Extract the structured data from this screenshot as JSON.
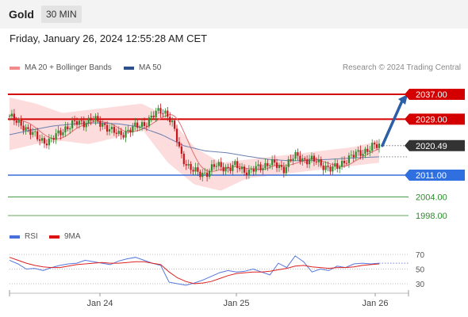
{
  "header": {
    "symbol": "Gold",
    "timeframe": "30 MIN"
  },
  "datetime": "Friday, January 26, 2024 12:55:28 AM CET",
  "credit": "Research © 2024 Trading Central",
  "legend": {
    "ma20_bollinger": "MA 20 + Bollinger Bands",
    "ma50": "MA 50",
    "rsi": "RSI",
    "rsi_ma": "9MA"
  },
  "colors": {
    "resistance": "#d40000",
    "support_primary": "#3a6fd8",
    "support_secondary": "#2e8b2e",
    "bull_candle": "#2e8b2e",
    "bear_candle": "#c8141a",
    "bollinger_fill": "#fbd6d6",
    "ma20": "#e07070",
    "ma50": "#6a7fb0",
    "rsi_line": "#5577dd",
    "rsi_ma_line": "#dd2222",
    "forecast_arrow": "#2d5fa8",
    "current_price_tag": "#333333"
  },
  "chart_data": {
    "type": "candlestick",
    "title": "Gold",
    "timeframe": "30 MIN",
    "x_tick_labels": [
      "Jan 24",
      "Jan 25",
      "Jan 26"
    ],
    "price_range": [
      1996,
      2040
    ],
    "current_price": "2020.49",
    "resistance_levels": [
      {
        "label": "2037.00",
        "value": 2037.0
      },
      {
        "label": "2029.00",
        "value": 2029.0
      }
    ],
    "support_levels": [
      {
        "label": "2011.00",
        "value": 2011.0,
        "style": "primary"
      },
      {
        "label": "2004.00",
        "value": 2004.0,
        "style": "secondary"
      },
      {
        "label": "1998.00",
        "value": 1998.0,
        "style": "secondary"
      }
    ],
    "forecast": {
      "from": 2020.5,
      "to": 2037.0,
      "direction": "up"
    },
    "price_path": [
      2030,
      2028,
      2027,
      2025,
      2023,
      2022,
      2022,
      2024,
      2026,
      2027,
      2028,
      2028,
      2029,
      2028,
      2027,
      2025,
      2024,
      2025,
      2026,
      2027,
      2028,
      2030,
      2032,
      2031,
      2026,
      2018,
      2014,
      2012,
      2011.5,
      2012,
      2014,
      2014,
      2013,
      2014,
      2013,
      2012,
      2013,
      2014,
      2015,
      2014,
      2013,
      2016,
      2017,
      2016,
      2016,
      2015,
      2014,
      2013,
      2013.5,
      2016,
      2017,
      2018,
      2019,
      2020,
      2020.49
    ],
    "ma50_path": [
      2024,
      2025.5,
      2026.8,
      2027.5,
      2027.8,
      2027.5,
      2026.5,
      2024,
      2020.5,
      2018.8,
      2018.2,
      2017,
      2016,
      2015.6,
      2015.8,
      2016.2,
      2016.6,
      2016.9
    ],
    "bollinger_upper": [
      2036,
      2034,
      2031,
      2032,
      2033,
      2034,
      2030,
      2020,
      2015,
      2016,
      2017,
      2018,
      2019,
      2020,
      2022
    ],
    "bollinger_lower": [
      2019,
      2021,
      2022,
      2021,
      2023,
      2026,
      2015,
      2008,
      2006,
      2010,
      2011,
      2012,
      2013,
      2014,
      2015
    ],
    "rsi": {
      "levels": [
        70,
        50,
        30
      ],
      "rsi_values": [
        62,
        57,
        50,
        51,
        48,
        52,
        55,
        57,
        58,
        62,
        60,
        58,
        56,
        61,
        64,
        66,
        62,
        58,
        55,
        32,
        30,
        28,
        31,
        35,
        40,
        45,
        48,
        46,
        47,
        50,
        46,
        42,
        58,
        52,
        68,
        60,
        46,
        50,
        48,
        54,
        52,
        57,
        58,
        57,
        58
      ],
      "ma_values": [
        66,
        62,
        58,
        55,
        53,
        52,
        52,
        54,
        56,
        57,
        58,
        59,
        58,
        58,
        59,
        60,
        60,
        58,
        56,
        46,
        38,
        33,
        30,
        31,
        33,
        37,
        41,
        44,
        45,
        46,
        46,
        47,
        49,
        51,
        54,
        55,
        53,
        52,
        51,
        52,
        52,
        53,
        55,
        56,
        57
      ]
    }
  }
}
